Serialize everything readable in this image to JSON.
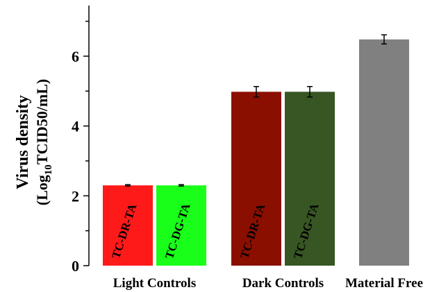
{
  "chart_data": {
    "type": "bar",
    "ylabel": {
      "line1": "Virus density",
      "line2": [
        "(Log",
        "10",
        "TCID50/mL)"
      ]
    },
    "categories": [
      "Light Controls",
      "Dark Controls",
      "Material Free"
    ],
    "bars": [
      {
        "group": 0,
        "label": "TC-DR-TA",
        "color": "#ff1a1a",
        "value": 2.3,
        "error": 0.02
      },
      {
        "group": 0,
        "label": "TC-DG-TA",
        "color": "#1aff1a",
        "value": 2.3,
        "error": 0.02
      },
      {
        "group": 1,
        "label": "TC-DR-TA",
        "color": "#8b0f00",
        "value": 4.98,
        "error": 0.15
      },
      {
        "group": 1,
        "label": "TC-DG-TA",
        "color": "#375623",
        "value": 4.98,
        "error": 0.15
      },
      {
        "group": 2,
        "color": "#808080",
        "value": 6.48,
        "error": 0.13
      }
    ],
    "ylim": [
      0,
      7.45
    ],
    "yticks": [
      0,
      2,
      4,
      6
    ],
    "minor_yticks": [
      1,
      3,
      5,
      7
    ]
  }
}
